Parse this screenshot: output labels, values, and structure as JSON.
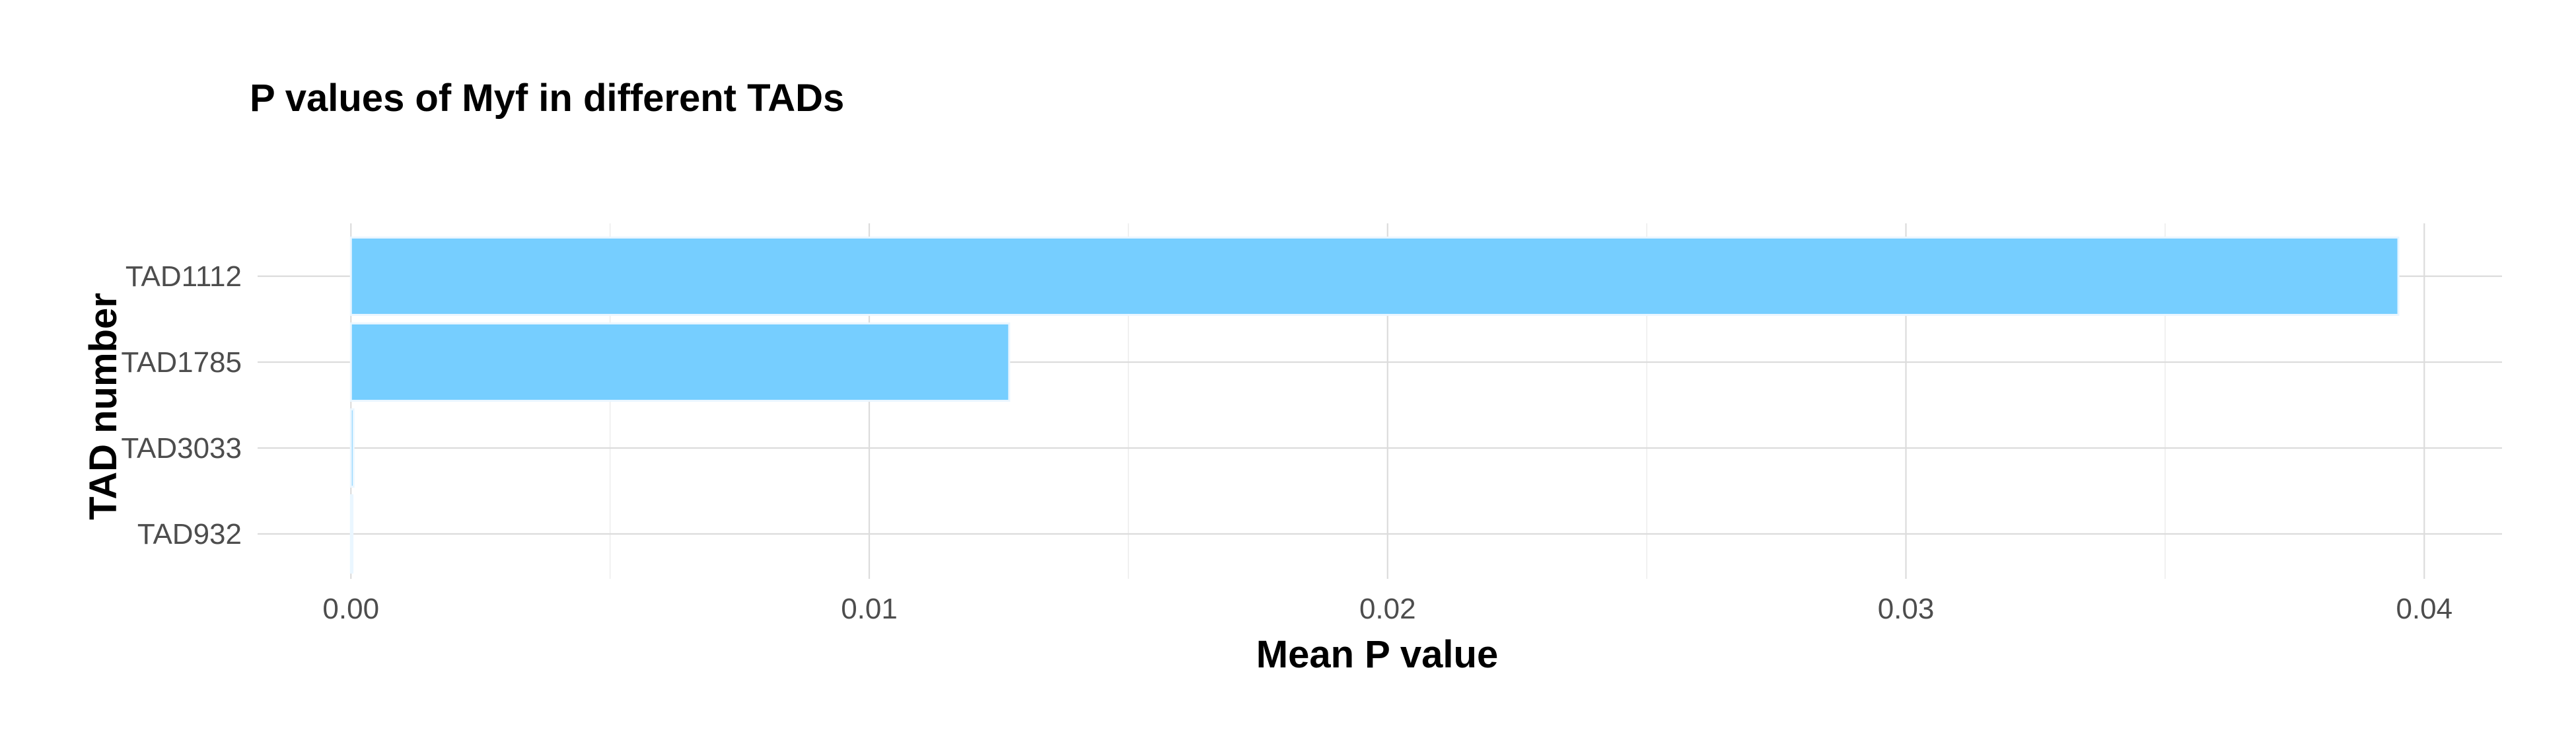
{
  "chart_data": {
    "type": "bar",
    "orientation": "horizontal",
    "title": "P values of Myf in different TADs",
    "xlabel": "Mean P value",
    "ylabel": "TAD number",
    "categories": [
      "TAD1112",
      "TAD1785",
      "TAD3033",
      "TAD932"
    ],
    "values": [
      0.0395,
      0.0127,
      5e-05,
      3e-05
    ],
    "xlim": [
      -0.0018,
      0.0415
    ],
    "x_ticks": [
      0.0,
      0.01,
      0.02,
      0.03,
      0.04
    ],
    "x_tick_labels": [
      "0.00",
      "0.01",
      "0.02",
      "0.03",
      "0.04"
    ],
    "bar_color": "#76CEFF",
    "grid": true,
    "legend": "none"
  }
}
